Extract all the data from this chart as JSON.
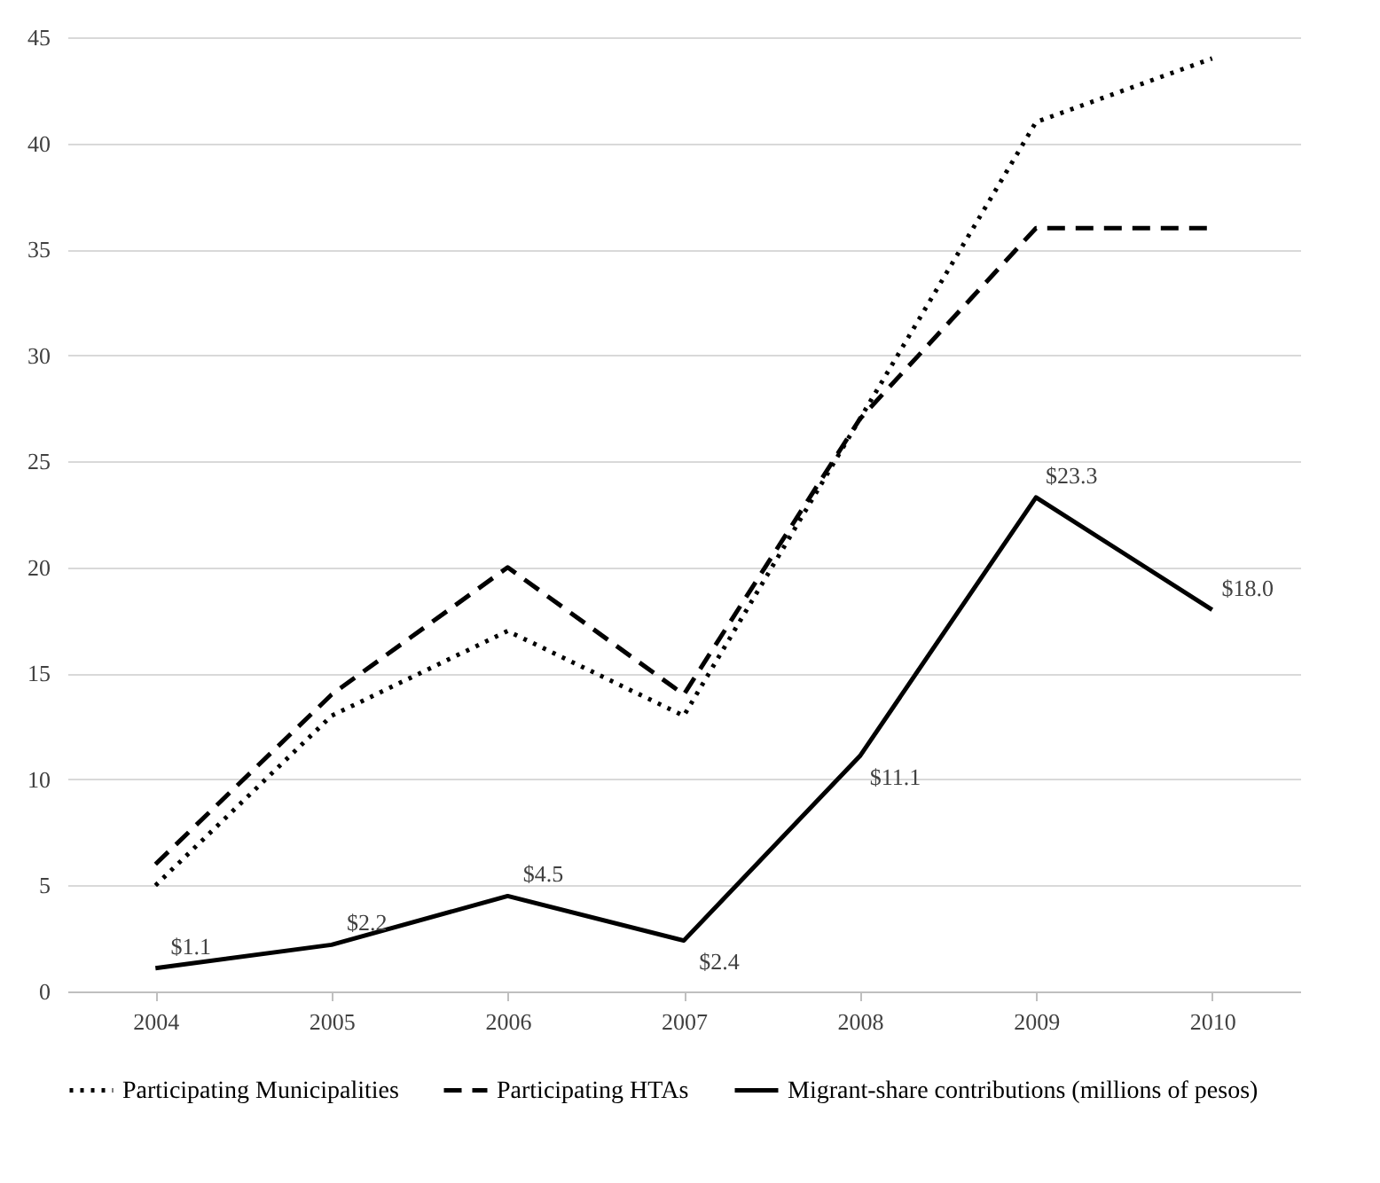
{
  "chart_data": {
    "type": "line",
    "categories": [
      "2004",
      "2005",
      "2006",
      "2007",
      "2008",
      "2009",
      "2010"
    ],
    "series": [
      {
        "name": "Participating Municipalities",
        "color": "#000000",
        "line_style": "dotted",
        "values": [
          5,
          13,
          17,
          13,
          27,
          41,
          44
        ]
      },
      {
        "name": "Participating HTAs",
        "color": "#000000",
        "line_style": "dashed",
        "values": [
          6,
          14,
          20,
          14,
          27,
          36,
          36
        ]
      },
      {
        "name": "Migrant-share contributions (millions of pesos)",
        "color": "#000000",
        "line_style": "solid",
        "values": [
          1.1,
          2.2,
          4.5,
          2.4,
          11.1,
          23.3,
          18.0
        ],
        "value_labels": [
          "$1.1",
          "$2.2",
          "$4.5",
          "$2.4",
          "$11.1",
          "$23.3",
          "$18.0"
        ]
      }
    ],
    "ylim": [
      0,
      45
    ],
    "yticks": [
      0,
      5,
      10,
      15,
      20,
      25,
      30,
      35,
      40,
      45
    ],
    "grid": "y",
    "legend": "bottom",
    "marker": "none"
  }
}
